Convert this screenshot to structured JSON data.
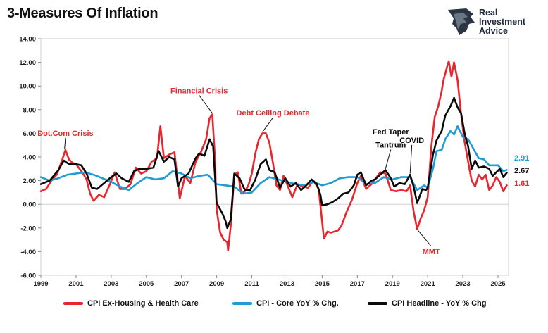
{
  "title": "3-Measures Of Inflation",
  "logo": {
    "line1": "Real",
    "line2": "Investment",
    "line3": "Advice",
    "icon": "lion-head-logo-icon"
  },
  "chart_data": {
    "type": "line",
    "title": "3-Measures Of Inflation",
    "xlabel": "",
    "ylabel": "",
    "xlim": [
      1999,
      2025.6
    ],
    "ylim": [
      -6,
      14
    ],
    "yticks": [
      "-6.00",
      "-4.00",
      "-2.00",
      "0.00",
      "2.00",
      "4.00",
      "6.00",
      "8.00",
      "10.00",
      "12.00",
      "14.00"
    ],
    "xticks": [
      "1999",
      "2001",
      "2003",
      "2005",
      "2007",
      "2009",
      "2011",
      "2013",
      "2015",
      "2017",
      "2019",
      "2021",
      "2023",
      "2025"
    ],
    "grid": false,
    "legend_position": "bottom",
    "series": [
      {
        "name": "CPI Ex-Housing & Health Care",
        "color": "#e8262e",
        "points": [
          [
            1999,
            1.1
          ],
          [
            1999.3,
            1.3
          ],
          [
            1999.6,
            2.0
          ],
          [
            1999.9,
            2.5
          ],
          [
            2000.2,
            3.7
          ],
          [
            2000.4,
            4.6
          ],
          [
            2000.6,
            3.8
          ],
          [
            2000.8,
            3.5
          ],
          [
            2001.0,
            3.4
          ],
          [
            2001.2,
            3.0
          ],
          [
            2001.4,
            2.6
          ],
          [
            2001.6,
            2.1
          ],
          [
            2001.8,
            0.9
          ],
          [
            2002.0,
            0.3
          ],
          [
            2002.3,
            0.8
          ],
          [
            2002.6,
            0.6
          ],
          [
            2002.9,
            1.6
          ],
          [
            2003.2,
            2.7
          ],
          [
            2003.5,
            1.3
          ],
          [
            2003.8,
            1.3
          ],
          [
            2004.1,
            1.7
          ],
          [
            2004.4,
            3.1
          ],
          [
            2004.7,
            2.6
          ],
          [
            2005.0,
            2.8
          ],
          [
            2005.3,
            3.6
          ],
          [
            2005.6,
            3.9
          ],
          [
            2005.8,
            6.6
          ],
          [
            2006.0,
            3.9
          ],
          [
            2006.3,
            4.2
          ],
          [
            2006.6,
            4.4
          ],
          [
            2006.9,
            0.5
          ],
          [
            2007.2,
            2.4
          ],
          [
            2007.5,
            1.8
          ],
          [
            2007.8,
            3.6
          ],
          [
            2008.1,
            4.4
          ],
          [
            2008.4,
            5.5
          ],
          [
            2008.6,
            7.3
          ],
          [
            2008.75,
            7.6
          ],
          [
            2008.9,
            4.0
          ],
          [
            2009.0,
            -0.5
          ],
          [
            2009.2,
            -2.4
          ],
          [
            2009.4,
            -3.0
          ],
          [
            2009.6,
            -3.2
          ],
          [
            2009.65,
            -3.9
          ],
          [
            2009.8,
            -1.8
          ],
          [
            2010.0,
            2.5
          ],
          [
            2010.2,
            2.7
          ],
          [
            2010.4,
            0.9
          ],
          [
            2010.6,
            1.1
          ],
          [
            2010.8,
            1.6
          ],
          [
            2011.0,
            2.6
          ],
          [
            2011.2,
            4.3
          ],
          [
            2011.4,
            5.5
          ],
          [
            2011.6,
            6.0
          ],
          [
            2011.8,
            6.0
          ],
          [
            2012.0,
            5.2
          ],
          [
            2012.2,
            3.5
          ],
          [
            2012.4,
            1.6
          ],
          [
            2012.6,
            1.2
          ],
          [
            2012.8,
            2.4
          ],
          [
            2013.0,
            1.7
          ],
          [
            2013.3,
            0.6
          ],
          [
            2013.6,
            1.7
          ],
          [
            2013.9,
            1.5
          ],
          [
            2014.2,
            1.4
          ],
          [
            2014.5,
            2.0
          ],
          [
            2014.8,
            1.3
          ],
          [
            2015.0,
            -1.5
          ],
          [
            2015.1,
            -2.9
          ],
          [
            2015.3,
            -2.3
          ],
          [
            2015.5,
            -2.4
          ],
          [
            2015.7,
            -2.3
          ],
          [
            2015.9,
            -2.2
          ],
          [
            2016.1,
            -1.8
          ],
          [
            2016.4,
            -0.6
          ],
          [
            2016.7,
            0.4
          ],
          [
            2017.0,
            1.8
          ],
          [
            2017.2,
            2.4
          ],
          [
            2017.5,
            1.3
          ],
          [
            2017.8,
            1.7
          ],
          [
            2018.0,
            2.1
          ],
          [
            2018.3,
            2.7
          ],
          [
            2018.6,
            2.6
          ],
          [
            2018.9,
            1.2
          ],
          [
            2019.2,
            1.1
          ],
          [
            2019.5,
            1.2
          ],
          [
            2019.8,
            1.1
          ],
          [
            2020.0,
            1.6
          ],
          [
            2020.2,
            -0.6
          ],
          [
            2020.4,
            -2.1
          ],
          [
            2020.6,
            -1.2
          ],
          [
            2020.8,
            -0.5
          ],
          [
            2021.0,
            0.6
          ],
          [
            2021.2,
            4.8
          ],
          [
            2021.4,
            7.4
          ],
          [
            2021.6,
            8.3
          ],
          [
            2021.8,
            9.6
          ],
          [
            2021.9,
            10.5
          ],
          [
            2022.1,
            11.6
          ],
          [
            2022.2,
            12.1
          ],
          [
            2022.35,
            10.8
          ],
          [
            2022.5,
            12.0
          ],
          [
            2022.7,
            10.5
          ],
          [
            2022.9,
            7.6
          ],
          [
            2023.1,
            5.3
          ],
          [
            2023.3,
            3.6
          ],
          [
            2023.5,
            2.0
          ],
          [
            2023.7,
            1.5
          ],
          [
            2023.9,
            2.5
          ],
          [
            2024.1,
            2.1
          ],
          [
            2024.3,
            2.5
          ],
          [
            2024.5,
            1.2
          ],
          [
            2024.7,
            1.6
          ],
          [
            2024.9,
            2.3
          ],
          [
            2025.1,
            1.9
          ],
          [
            2025.3,
            1.1
          ],
          [
            2025.5,
            1.61
          ]
        ]
      },
      {
        "name": "CPI - Core YoY % Chg.",
        "color": "#1f9bd6",
        "points": [
          [
            1999,
            2.3
          ],
          [
            1999.5,
            2.0
          ],
          [
            2000.0,
            2.2
          ],
          [
            2000.5,
            2.5
          ],
          [
            2001.0,
            2.6
          ],
          [
            2001.5,
            2.7
          ],
          [
            2002.0,
            2.5
          ],
          [
            2002.5,
            2.2
          ],
          [
            2003.0,
            1.9
          ],
          [
            2003.5,
            1.5
          ],
          [
            2004.0,
            1.2
          ],
          [
            2004.5,
            1.8
          ],
          [
            2005.0,
            2.3
          ],
          [
            2005.5,
            2.1
          ],
          [
            2006.0,
            2.2
          ],
          [
            2006.5,
            2.8
          ],
          [
            2007.0,
            2.6
          ],
          [
            2007.5,
            2.2
          ],
          [
            2008.0,
            2.4
          ],
          [
            2008.5,
            2.5
          ],
          [
            2009.0,
            1.7
          ],
          [
            2009.5,
            1.6
          ],
          [
            2010.0,
            1.5
          ],
          [
            2010.5,
            0.9
          ],
          [
            2011.0,
            1.0
          ],
          [
            2011.5,
            1.8
          ],
          [
            2012.0,
            2.3
          ],
          [
            2012.5,
            2.1
          ],
          [
            2013.0,
            1.9
          ],
          [
            2013.5,
            1.7
          ],
          [
            2014.0,
            1.6
          ],
          [
            2014.5,
            1.9
          ],
          [
            2015.0,
            1.6
          ],
          [
            2015.5,
            1.8
          ],
          [
            2016.0,
            2.2
          ],
          [
            2016.5,
            2.3
          ],
          [
            2017.0,
            2.3
          ],
          [
            2017.5,
            1.7
          ],
          [
            2018.0,
            1.8
          ],
          [
            2018.5,
            2.3
          ],
          [
            2019.0,
            2.1
          ],
          [
            2019.5,
            2.3
          ],
          [
            2020.0,
            2.3
          ],
          [
            2020.4,
            1.2
          ],
          [
            2020.8,
            1.6
          ],
          [
            2021.0,
            1.4
          ],
          [
            2021.3,
            3.0
          ],
          [
            2021.5,
            4.5
          ],
          [
            2021.8,
            4.6
          ],
          [
            2022.0,
            5.5
          ],
          [
            2022.3,
            6.2
          ],
          [
            2022.5,
            5.9
          ],
          [
            2022.7,
            6.6
          ],
          [
            2023.0,
            5.7
          ],
          [
            2023.3,
            5.5
          ],
          [
            2023.6,
            4.7
          ],
          [
            2023.9,
            3.9
          ],
          [
            2024.2,
            3.8
          ],
          [
            2024.5,
            3.3
          ],
          [
            2024.8,
            3.3
          ],
          [
            2025.0,
            3.3
          ],
          [
            2025.3,
            2.8
          ],
          [
            2025.5,
            2.91
          ]
        ]
      },
      {
        "name": "CPI Headline - YoY % Chg",
        "color": "#0a0a0a",
        "points": [
          [
            1999,
            1.7
          ],
          [
            1999.5,
            2.0
          ],
          [
            2000.0,
            2.9
          ],
          [
            2000.3,
            3.7
          ],
          [
            2000.6,
            3.4
          ],
          [
            2001.0,
            3.4
          ],
          [
            2001.3,
            3.3
          ],
          [
            2001.6,
            2.6
          ],
          [
            2001.9,
            1.4
          ],
          [
            2002.2,
            1.3
          ],
          [
            2002.6,
            1.8
          ],
          [
            2003.0,
            2.3
          ],
          [
            2003.3,
            2.6
          ],
          [
            2003.6,
            2.2
          ],
          [
            2004.0,
            1.9
          ],
          [
            2004.3,
            2.8
          ],
          [
            2004.6,
            3.0
          ],
          [
            2005.0,
            3.0
          ],
          [
            2005.4,
            3.1
          ],
          [
            2005.7,
            4.5
          ],
          [
            2006.0,
            3.6
          ],
          [
            2006.3,
            4.0
          ],
          [
            2006.6,
            3.8
          ],
          [
            2006.8,
            1.5
          ],
          [
            2007.0,
            2.2
          ],
          [
            2007.4,
            2.6
          ],
          [
            2007.8,
            3.9
          ],
          [
            2008.0,
            4.3
          ],
          [
            2008.3,
            4.1
          ],
          [
            2008.6,
            5.5
          ],
          [
            2008.8,
            4.9
          ],
          [
            2009.0,
            0.1
          ],
          [
            2009.3,
            -0.7
          ],
          [
            2009.5,
            -1.4
          ],
          [
            2009.6,
            -2.0
          ],
          [
            2009.8,
            -1.3
          ],
          [
            2010.0,
            2.6
          ],
          [
            2010.3,
            2.2
          ],
          [
            2010.6,
            1.2
          ],
          [
            2010.9,
            1.2
          ],
          [
            2011.2,
            2.1
          ],
          [
            2011.5,
            3.4
          ],
          [
            2011.8,
            3.8
          ],
          [
            2012.0,
            2.9
          ],
          [
            2012.3,
            2.7
          ],
          [
            2012.6,
            1.4
          ],
          [
            2012.9,
            2.2
          ],
          [
            2013.2,
            1.5
          ],
          [
            2013.5,
            1.8
          ],
          [
            2013.8,
            1.2
          ],
          [
            2014.1,
            1.6
          ],
          [
            2014.4,
            2.1
          ],
          [
            2014.7,
            1.7
          ],
          [
            2014.9,
            0.8
          ],
          [
            2015.0,
            -0.1
          ],
          [
            2015.3,
            0.0
          ],
          [
            2015.6,
            0.2
          ],
          [
            2015.9,
            0.5
          ],
          [
            2016.2,
            0.9
          ],
          [
            2016.5,
            1.0
          ],
          [
            2016.8,
            1.6
          ],
          [
            2017.0,
            2.5
          ],
          [
            2017.2,
            2.7
          ],
          [
            2017.5,
            1.6
          ],
          [
            2017.8,
            2.0
          ],
          [
            2018.0,
            2.1
          ],
          [
            2018.3,
            2.5
          ],
          [
            2018.6,
            2.9
          ],
          [
            2018.9,
            2.2
          ],
          [
            2019.1,
            1.5
          ],
          [
            2019.4,
            1.8
          ],
          [
            2019.7,
            1.7
          ],
          [
            2020.0,
            2.5
          ],
          [
            2020.2,
            1.5
          ],
          [
            2020.4,
            0.1
          ],
          [
            2020.7,
            1.3
          ],
          [
            2020.9,
            1.2
          ],
          [
            2021.0,
            1.4
          ],
          [
            2021.3,
            4.2
          ],
          [
            2021.5,
            5.4
          ],
          [
            2021.8,
            6.2
          ],
          [
            2022.0,
            7.5
          ],
          [
            2022.3,
            8.3
          ],
          [
            2022.5,
            9.0
          ],
          [
            2022.7,
            8.2
          ],
          [
            2022.9,
            7.7
          ],
          [
            2023.1,
            6.0
          ],
          [
            2023.3,
            4.9
          ],
          [
            2023.5,
            3.0
          ],
          [
            2023.7,
            3.7
          ],
          [
            2023.9,
            3.1
          ],
          [
            2024.2,
            3.2
          ],
          [
            2024.5,
            3.0
          ],
          [
            2024.7,
            2.4
          ],
          [
            2024.9,
            2.7
          ],
          [
            2025.1,
            3.0
          ],
          [
            2025.3,
            2.3
          ],
          [
            2025.5,
            2.67
          ]
        ]
      }
    ],
    "end_labels": [
      {
        "text": "2.91",
        "color": "#1f9bd6",
        "y": 2.91
      },
      {
        "text": "2.67",
        "color": "#0a0a0a",
        "y": 2.67
      },
      {
        "text": "1.61",
        "color": "#e8262e",
        "y": 1.61
      }
    ],
    "annotations": [
      {
        "text": "Dot.Com Crisis",
        "color": "#e8262e",
        "x": 2000.4,
        "y": 5.8,
        "pointer": [
          2000.35,
          4.7
        ]
      },
      {
        "text": "Financial Crisis",
        "color": "#e8262e",
        "x": 2008.0,
        "y": 9.4,
        "pointer": [
          2008.75,
          7.7
        ]
      },
      {
        "text": "Debt Ceiling Debate",
        "color": "#e8262e",
        "x": 2012.2,
        "y": 7.5,
        "pointer": [
          2011.6,
          6.1
        ]
      },
      {
        "text": "Fed Taper",
        "color": "#0a0a0a",
        "x": 2018.9,
        "y": 5.9,
        "pointer": null
      },
      {
        "text": "Tantrum",
        "color": "#0a0a0a",
        "x": 2018.9,
        "y": 4.8,
        "pointer": [
          2018.6,
          3.0
        ]
      },
      {
        "text": "COVID",
        "color": "#0a0a0a",
        "x": 2020.1,
        "y": 5.2,
        "pointer": [
          2020.0,
          2.6
        ]
      },
      {
        "text": "MMT",
        "color": "#e8262e",
        "x": 2021.2,
        "y": -4.2,
        "pointer": [
          2020.45,
          -2.2
        ]
      }
    ]
  }
}
